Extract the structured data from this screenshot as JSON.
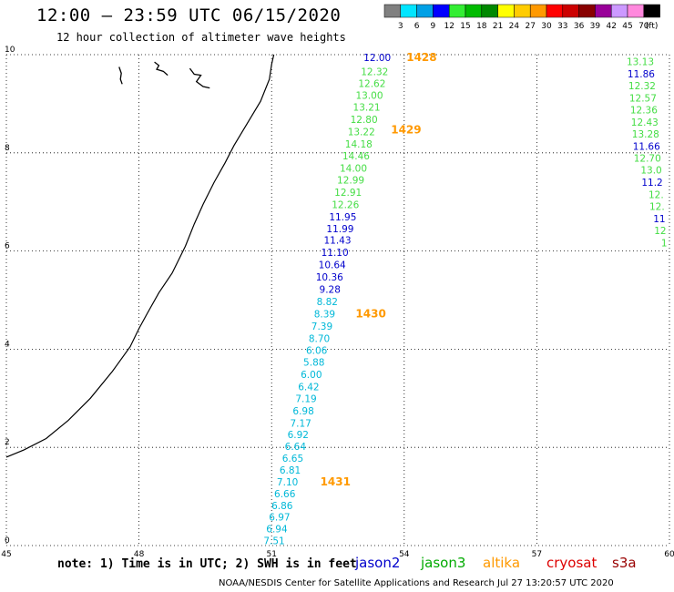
{
  "header": {
    "title": "12:00 – 23:59 UTC 06/15/2020",
    "subtitle": "12 hour collection of altimeter wave heights"
  },
  "legend": {
    "unit": "(ft)",
    "bins": [
      {
        "label": "3",
        "color": "#808080"
      },
      {
        "label": "6",
        "color": "#00e5ff"
      },
      {
        "label": "9",
        "color": "#00a0e6"
      },
      {
        "label": "12",
        "color": "#0000ff"
      },
      {
        "label": "15",
        "color": "#33ee33"
      },
      {
        "label": "18",
        "color": "#00bb00"
      },
      {
        "label": "21",
        "color": "#008800"
      },
      {
        "label": "24",
        "color": "#ffff00"
      },
      {
        "label": "27",
        "color": "#ffcc00"
      },
      {
        "label": "30",
        "color": "#ff9900"
      },
      {
        "label": "33",
        "color": "#ff0000"
      },
      {
        "label": "36",
        "color": "#cc0000"
      },
      {
        "label": "39",
        "color": "#880000"
      },
      {
        "label": "42",
        "color": "#990099"
      },
      {
        "label": "45",
        "color": "#cc99ff"
      },
      {
        "label": "70",
        "color": "#ff88dd"
      },
      {
        "label": "",
        "color": "#000000"
      }
    ]
  },
  "map": {
    "lon_range": [
      45,
      60
    ],
    "lat_range": [
      0,
      10
    ],
    "x_ticks": [
      "45",
      "48",
      "51",
      "54",
      "57",
      "60"
    ],
    "y_ticks": [
      "0",
      "2",
      "4",
      "6",
      "8",
      "10"
    ],
    "colors": {
      "jason2": "#0000cc",
      "jason3": "#44dd44",
      "cyan": "#00b8d8",
      "time": "#ff9900",
      "coast": "#000000",
      "grid": "#000000"
    },
    "track_a": [
      {
        "lon": 53.7,
        "lat": 9.94,
        "v": "12.00",
        "c": "jason2"
      },
      {
        "lon": 53.64,
        "lat": 9.66,
        "v": "12.32",
        "c": "jason3"
      },
      {
        "lon": 53.58,
        "lat": 9.42,
        "v": "12.62",
        "c": "jason3"
      },
      {
        "lon": 53.52,
        "lat": 9.17,
        "v": "13.00",
        "c": "jason3"
      },
      {
        "lon": 53.46,
        "lat": 8.93,
        "v": "13.21",
        "c": "jason3"
      },
      {
        "lon": 53.4,
        "lat": 8.68,
        "v": "12.80",
        "c": "jason3"
      },
      {
        "lon": 53.34,
        "lat": 8.43,
        "v": "13.22",
        "c": "jason3"
      },
      {
        "lon": 53.28,
        "lat": 8.18,
        "v": "14.18",
        "c": "jason3"
      },
      {
        "lon": 53.22,
        "lat": 7.94,
        "v": "14.46",
        "c": "jason3"
      },
      {
        "lon": 53.16,
        "lat": 7.69,
        "v": "14.00",
        "c": "jason3"
      },
      {
        "lon": 53.1,
        "lat": 7.45,
        "v": "12.99",
        "c": "jason3"
      },
      {
        "lon": 53.04,
        "lat": 7.2,
        "v": "12.91",
        "c": "jason3"
      },
      {
        "lon": 52.98,
        "lat": 6.95,
        "v": "12.26",
        "c": "jason3"
      },
      {
        "lon": 52.92,
        "lat": 6.7,
        "v": "11.95",
        "c": "jason2"
      },
      {
        "lon": 52.86,
        "lat": 6.46,
        "v": "11.99",
        "c": "jason2"
      },
      {
        "lon": 52.8,
        "lat": 6.22,
        "v": "11.43",
        "c": "jason2"
      },
      {
        "lon": 52.74,
        "lat": 5.97,
        "v": "11.10",
        "c": "jason2"
      },
      {
        "lon": 52.68,
        "lat": 5.72,
        "v": "10.64",
        "c": "jason2"
      },
      {
        "lon": 52.62,
        "lat": 5.47,
        "v": "10.36",
        "c": "jason2"
      },
      {
        "lon": 52.56,
        "lat": 5.22,
        "v": "9.28",
        "c": "jason2"
      },
      {
        "lon": 52.5,
        "lat": 4.97,
        "v": "8.82",
        "c": "cyan"
      },
      {
        "lon": 52.44,
        "lat": 4.72,
        "v": "8.39",
        "c": "cyan"
      },
      {
        "lon": 52.38,
        "lat": 4.47,
        "v": "7.39",
        "c": "cyan"
      },
      {
        "lon": 52.32,
        "lat": 4.22,
        "v": "8.70",
        "c": "cyan"
      },
      {
        "lon": 52.26,
        "lat": 3.98,
        "v": "6.06",
        "c": "cyan"
      },
      {
        "lon": 52.2,
        "lat": 3.74,
        "v": "5.88",
        "c": "cyan"
      },
      {
        "lon": 52.14,
        "lat": 3.49,
        "v": "6.00",
        "c": "cyan"
      },
      {
        "lon": 52.08,
        "lat": 3.24,
        "v": "6.42",
        "c": "cyan"
      },
      {
        "lon": 52.02,
        "lat": 3.0,
        "v": "7.19",
        "c": "cyan"
      },
      {
        "lon": 51.96,
        "lat": 2.75,
        "v": "6.98",
        "c": "cyan"
      },
      {
        "lon": 51.9,
        "lat": 2.5,
        "v": "7.17",
        "c": "cyan"
      },
      {
        "lon": 51.84,
        "lat": 2.26,
        "v": "6.92",
        "c": "cyan"
      },
      {
        "lon": 51.78,
        "lat": 2.02,
        "v": "6.64",
        "c": "cyan"
      },
      {
        "lon": 51.72,
        "lat": 1.78,
        "v": "6.65",
        "c": "cyan"
      },
      {
        "lon": 51.66,
        "lat": 1.54,
        "v": "6.81",
        "c": "cyan"
      },
      {
        "lon": 51.6,
        "lat": 1.3,
        "v": "7.10",
        "c": "cyan"
      },
      {
        "lon": 51.54,
        "lat": 1.06,
        "v": "6.66",
        "c": "cyan"
      },
      {
        "lon": 51.48,
        "lat": 0.82,
        "v": "6.86",
        "c": "cyan"
      },
      {
        "lon": 51.42,
        "lat": 0.58,
        "v": "6.97",
        "c": "cyan"
      },
      {
        "lon": 51.36,
        "lat": 0.34,
        "v": "6.94",
        "c": "cyan"
      },
      {
        "lon": 51.3,
        "lat": 0.1,
        "v": "7.51",
        "c": "cyan"
      }
    ],
    "track_b": [
      {
        "lon": 59.65,
        "lat": 9.86,
        "v": "13.13",
        "c": "jason3"
      },
      {
        "lon": 59.67,
        "lat": 9.61,
        "v": "11.86",
        "c": "jason2"
      },
      {
        "lon": 59.69,
        "lat": 9.37,
        "v": "12.32",
        "c": "jason3"
      },
      {
        "lon": 59.71,
        "lat": 9.12,
        "v": "12.57",
        "c": "jason3"
      },
      {
        "lon": 59.73,
        "lat": 8.88,
        "v": "12.36",
        "c": "jason3"
      },
      {
        "lon": 59.75,
        "lat": 8.63,
        "v": "12.43",
        "c": "jason3"
      },
      {
        "lon": 59.77,
        "lat": 8.39,
        "v": "13.28",
        "c": "jason3"
      },
      {
        "lon": 59.79,
        "lat": 8.14,
        "v": "11.66",
        "c": "jason2"
      },
      {
        "lon": 59.81,
        "lat": 7.89,
        "v": "12.70",
        "c": "jason3"
      },
      {
        "lon": 59.83,
        "lat": 7.65,
        "v": "13.0",
        "c": "jason3"
      },
      {
        "lon": 59.85,
        "lat": 7.4,
        "v": "11.2",
        "c": "jason2"
      },
      {
        "lon": 59.87,
        "lat": 7.15,
        "v": "12.",
        "c": "jason3"
      },
      {
        "lon": 59.89,
        "lat": 6.91,
        "v": "12.",
        "c": "jason3"
      },
      {
        "lon": 59.91,
        "lat": 6.66,
        "v": "11",
        "c": "jason2"
      },
      {
        "lon": 59.93,
        "lat": 6.42,
        "v": "12",
        "c": "jason3"
      },
      {
        "lon": 59.95,
        "lat": 6.17,
        "v": "1",
        "c": "jason3"
      }
    ],
    "time_labels": [
      {
        "lon": 54.05,
        "lat": 9.94,
        "t": "1428"
      },
      {
        "lon": 53.7,
        "lat": 8.47,
        "t": "1429"
      },
      {
        "lon": 52.9,
        "lat": 4.72,
        "t": "1430"
      },
      {
        "lon": 52.1,
        "lat": 1.3,
        "t": "1431"
      }
    ],
    "coastline": [
      [
        45.0,
        1.8
      ],
      [
        45.4,
        1.95
      ],
      [
        45.9,
        2.18
      ],
      [
        46.4,
        2.55
      ],
      [
        46.9,
        3.0
      ],
      [
        47.4,
        3.55
      ],
      [
        47.8,
        4.05
      ],
      [
        48.0,
        4.42
      ],
      [
        48.2,
        4.75
      ],
      [
        48.45,
        5.15
      ],
      [
        48.75,
        5.55
      ],
      [
        49.05,
        6.1
      ],
      [
        49.25,
        6.55
      ],
      [
        49.45,
        6.95
      ],
      [
        49.7,
        7.4
      ],
      [
        49.95,
        7.8
      ],
      [
        50.15,
        8.15
      ],
      [
        50.45,
        8.6
      ],
      [
        50.75,
        9.05
      ],
      [
        50.95,
        9.5
      ],
      [
        51.0,
        9.8
      ],
      [
        51.05,
        10.0
      ]
    ],
    "islands": [
      [
        [
          47.55,
          9.75
        ],
        [
          47.6,
          9.62
        ],
        [
          47.58,
          9.5
        ],
        [
          47.62,
          9.4
        ]
      ],
      [
        [
          48.35,
          9.85
        ],
        [
          48.45,
          9.78
        ],
        [
          48.4,
          9.7
        ],
        [
          48.55,
          9.66
        ],
        [
          48.65,
          9.58
        ]
      ],
      [
        [
          49.15,
          9.72
        ],
        [
          49.25,
          9.6
        ],
        [
          49.4,
          9.58
        ],
        [
          49.3,
          9.45
        ],
        [
          49.45,
          9.35
        ],
        [
          49.6,
          9.32
        ]
      ]
    ]
  },
  "footer": {
    "note": "note: 1) Time is in UTC; 2) SWH is in feet",
    "satellites": [
      {
        "name": "jason2",
        "color": "#0000cc"
      },
      {
        "name": "jason3",
        "color": "#00aa00"
      },
      {
        "name": "altika",
        "color": "#ff9900"
      },
      {
        "name": "cryosat",
        "color": "#dd0000"
      },
      {
        "name": "s3a",
        "color": "#990000"
      }
    ],
    "credit": "NOAA/NESDIS Center for Satellite Applications and Research   Jul 27 13:20:57 UTC 2020"
  }
}
